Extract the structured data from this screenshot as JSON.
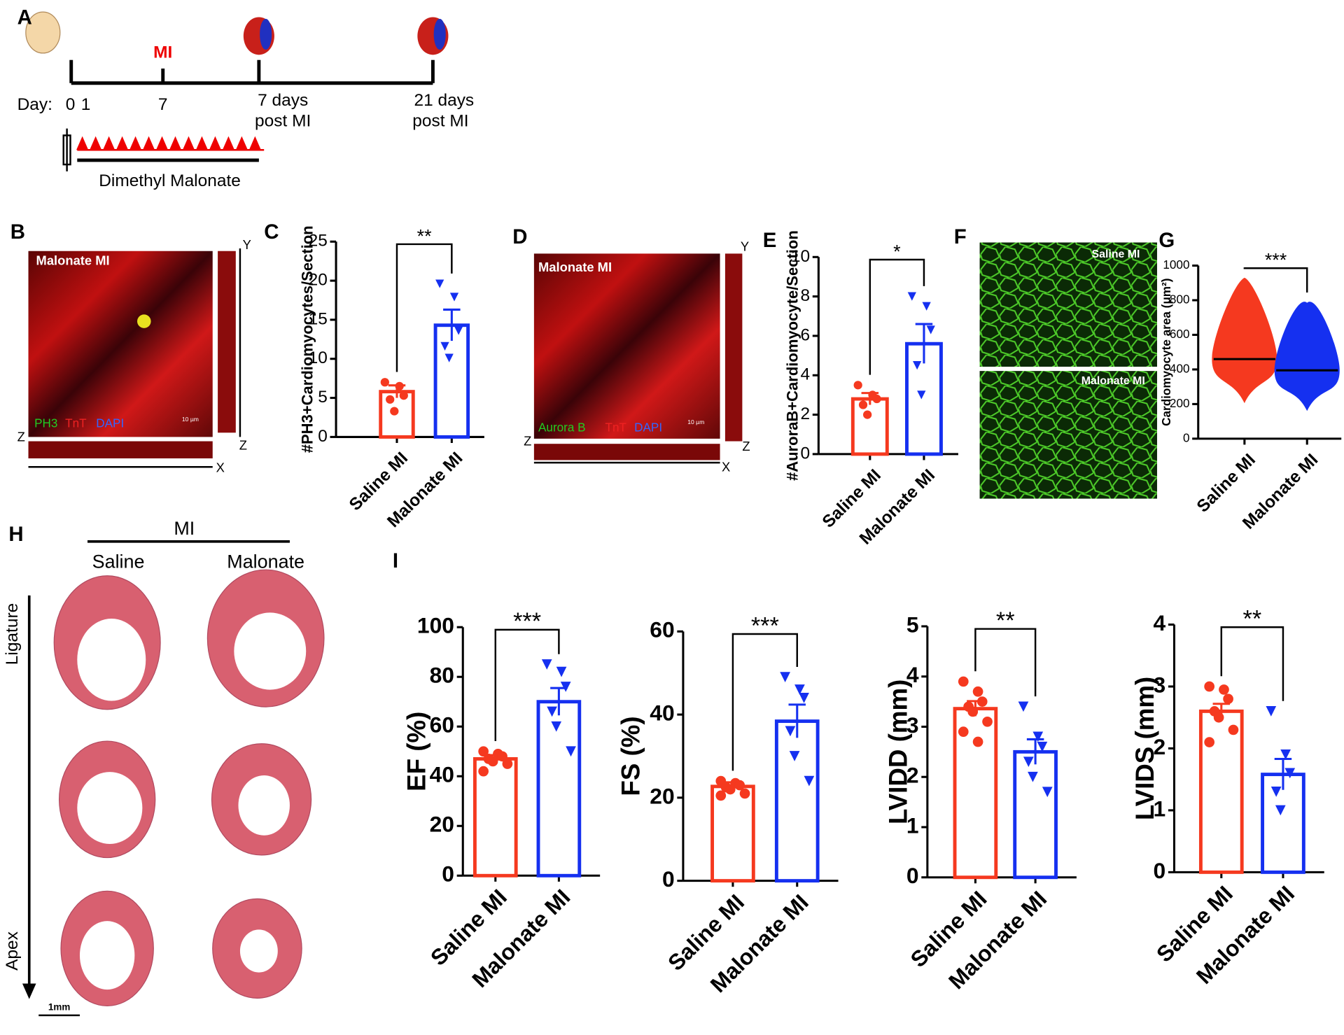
{
  "panel_labels": [
    "A",
    "B",
    "C",
    "D",
    "E",
    "F",
    "G",
    "H",
    "I"
  ],
  "timeline": {
    "day": "Day:",
    "d0": "0",
    "d1": "1",
    "d7": "7",
    "mi": "MI",
    "p1a": "7 days",
    "p1b": "post MI",
    "p2a": "21 days",
    "p2b": "post MI",
    "drug": "Dimethyl Malonate"
  },
  "images": {
    "B": {
      "title": "Malonate MI",
      "stain1": "PH3",
      "stain2": "TnT",
      "stain3": "DAPI",
      "scale": "10 µm",
      "y": "Y",
      "z1": "Z",
      "z2": "Z",
      "x": "X"
    },
    "D": {
      "title": "Malonate MI",
      "stain1": "Aurora B",
      "stain2": "TnT",
      "stain3": "DAPI",
      "scale": "10 µm",
      "y": "Y",
      "z1": "Z",
      "z2": "Z",
      "x": "X"
    },
    "F": {
      "top": "Saline MI",
      "bottom": "Malonate MI"
    },
    "H": {
      "group": "MI",
      "col1": "Saline",
      "col2": "Malonate",
      "top": "Ligature",
      "bottom": "Apex",
      "scale": "1mm"
    }
  },
  "chart_data": [
    {
      "type": "bar",
      "ylabel": "#PH3+Cardiomyocytes/Section",
      "categories": [
        "Saline MI",
        "Malonate MI"
      ],
      "colors": [
        "#f5391f",
        "#1530f0"
      ],
      "values": [
        5.8,
        14.3
      ],
      "errors": [
        0.8,
        2.0
      ],
      "points": [
        [
          7.0,
          6.5,
          5.3,
          4.8,
          3.3
        ],
        [
          19.6,
          17.9,
          13.6,
          11.6,
          10.1
        ]
      ],
      "ylim": [
        0,
        25
      ],
      "yticks": [
        0,
        5,
        10,
        15,
        20,
        25
      ],
      "significance": "**"
    },
    {
      "type": "bar",
      "ylabel": "#AuroraB+Cardiomyocyte/Section",
      "categories": [
        "Saline MI",
        "Malonate MI"
      ],
      "colors": [
        "#f5391f",
        "#1530f0"
      ],
      "values": [
        2.8,
        5.6
      ],
      "errors": [
        0.3,
        1.0
      ],
      "points": [
        [
          3.5,
          3.0,
          2.8,
          2.5,
          2.0
        ],
        [
          8.0,
          7.5,
          6.3,
          4.5,
          3.0
        ]
      ],
      "ylim": [
        0,
        10
      ],
      "yticks": [
        0,
        2,
        4,
        6,
        8,
        10
      ],
      "significance": "*"
    },
    {
      "type": "swarm",
      "ylabel": "Cardiomyocyte area (μm²)",
      "categories": [
        "Saline MI",
        "Malonate MI"
      ],
      "colors": [
        "#f5391f",
        "#1530f0"
      ],
      "values": [
        460,
        395
      ],
      "min": [
        205,
        160
      ],
      "max": [
        930,
        785
      ],
      "ylim": [
        0,
        1000
      ],
      "yticks": [
        0,
        200,
        400,
        600,
        800,
        1000
      ],
      "significance": "***"
    },
    {
      "type": "bar",
      "ylabel": "EF (%)",
      "categories": [
        "Saline MI",
        "Malonate MI"
      ],
      "colors": [
        "#f5391f",
        "#1530f0"
      ],
      "values": [
        47,
        70
      ],
      "errors": [
        1.5,
        5.5
      ],
      "points": [
        [
          50,
          49,
          48,
          47,
          46,
          45,
          42
        ],
        [
          85,
          82,
          76,
          66,
          60,
          50
        ]
      ],
      "ylim": [
        0,
        100
      ],
      "yticks": [
        0,
        20,
        40,
        60,
        80,
        100
      ],
      "significance": "***"
    },
    {
      "type": "bar",
      "ylabel": "FS (%)",
      "categories": [
        "Saline MI",
        "Malonate MI"
      ],
      "colors": [
        "#f5391f",
        "#1530f0"
      ],
      "values": [
        22.7,
        38.4
      ],
      "errors": [
        1.0,
        4.0
      ],
      "points": [
        [
          24,
          23.5,
          23,
          22.5,
          22,
          21,
          20.5
        ],
        [
          49,
          46,
          44,
          36,
          30,
          24
        ]
      ],
      "ylim": [
        0,
        60
      ],
      "yticks": [
        0,
        20,
        40,
        60
      ],
      "significance": "***"
    },
    {
      "type": "bar",
      "ylabel": "LVIDD (mm)",
      "categories": [
        "Saline MI",
        "Malonate MI"
      ],
      "colors": [
        "#f5391f",
        "#1530f0"
      ],
      "values": [
        3.36,
        2.5
      ],
      "errors": [
        0.15,
        0.25
      ],
      "points": [
        [
          3.9,
          3.7,
          3.5,
          3.4,
          3.3,
          3.1,
          2.9,
          2.7
        ],
        [
          3.4,
          2.8,
          2.6,
          2.3,
          2.0,
          1.7
        ]
      ],
      "ylim": [
        0,
        5
      ],
      "yticks": [
        0,
        1,
        2,
        3,
        4,
        5
      ],
      "significance": "**"
    },
    {
      "type": "bar",
      "ylabel": "LVIDS (mm)",
      "categories": [
        "Saline MI",
        "Malonate MI"
      ],
      "colors": [
        "#f5391f",
        "#1530f0"
      ],
      "values": [
        2.6,
        1.58
      ],
      "errors": [
        0.12,
        0.25
      ],
      "points": [
        [
          3.0,
          2.95,
          2.8,
          2.6,
          2.5,
          2.3,
          2.1
        ],
        [
          2.6,
          1.9,
          1.6,
          1.3,
          1.0
        ]
      ],
      "ylim": [
        0,
        4
      ],
      "yticks": [
        0,
        1,
        2,
        3,
        4
      ],
      "significance": "**"
    }
  ]
}
